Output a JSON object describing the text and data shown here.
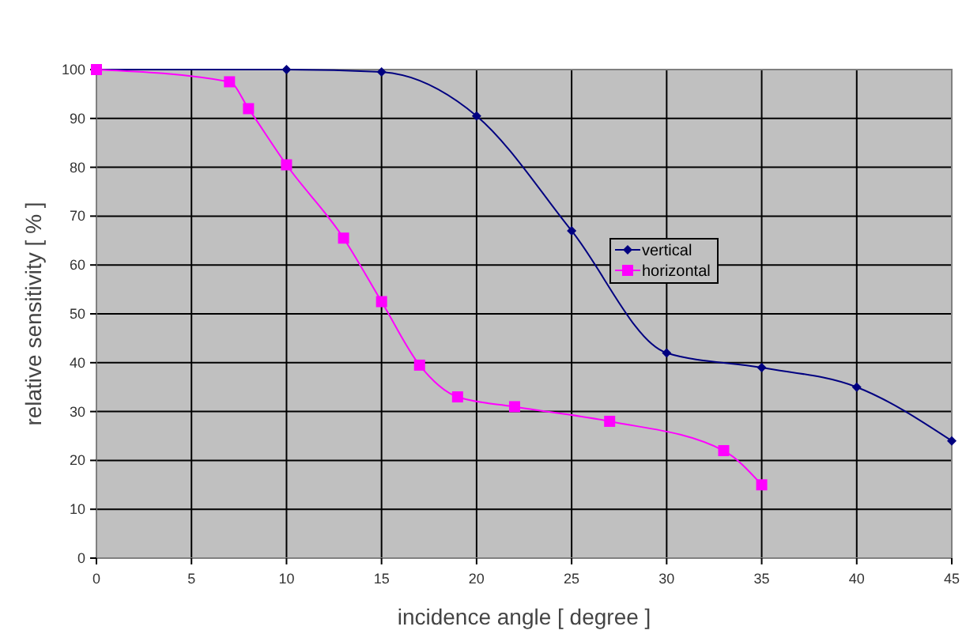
{
  "chart_data": {
    "type": "line",
    "xlabel": "incidence angle [ degree ]",
    "ylabel": "relative sensitivity [ % ]",
    "xlim": [
      0,
      45
    ],
    "ylim": [
      0,
      100
    ],
    "xticks": [
      0,
      5,
      10,
      15,
      20,
      25,
      30,
      35,
      40,
      45
    ],
    "yticks": [
      0,
      10,
      20,
      30,
      40,
      50,
      60,
      70,
      80,
      90,
      100
    ],
    "grid": true,
    "legend": "right",
    "series": [
      {
        "name": "vertical",
        "color": "#000080",
        "marker": "diamond",
        "x": [
          0,
          10,
          15,
          20,
          25,
          30,
          35,
          40,
          45
        ],
        "values": [
          100,
          100,
          99.5,
          90.5,
          67,
          42,
          39,
          35,
          24
        ]
      },
      {
        "name": "horizontal",
        "color": "#ff00ff",
        "marker": "square",
        "x": [
          0,
          7,
          8,
          10,
          13,
          15,
          17,
          19,
          22,
          27,
          33,
          35
        ],
        "values": [
          100,
          97.5,
          92,
          80.5,
          65.5,
          52.5,
          39.5,
          33,
          31,
          28,
          22,
          15
        ]
      }
    ]
  }
}
